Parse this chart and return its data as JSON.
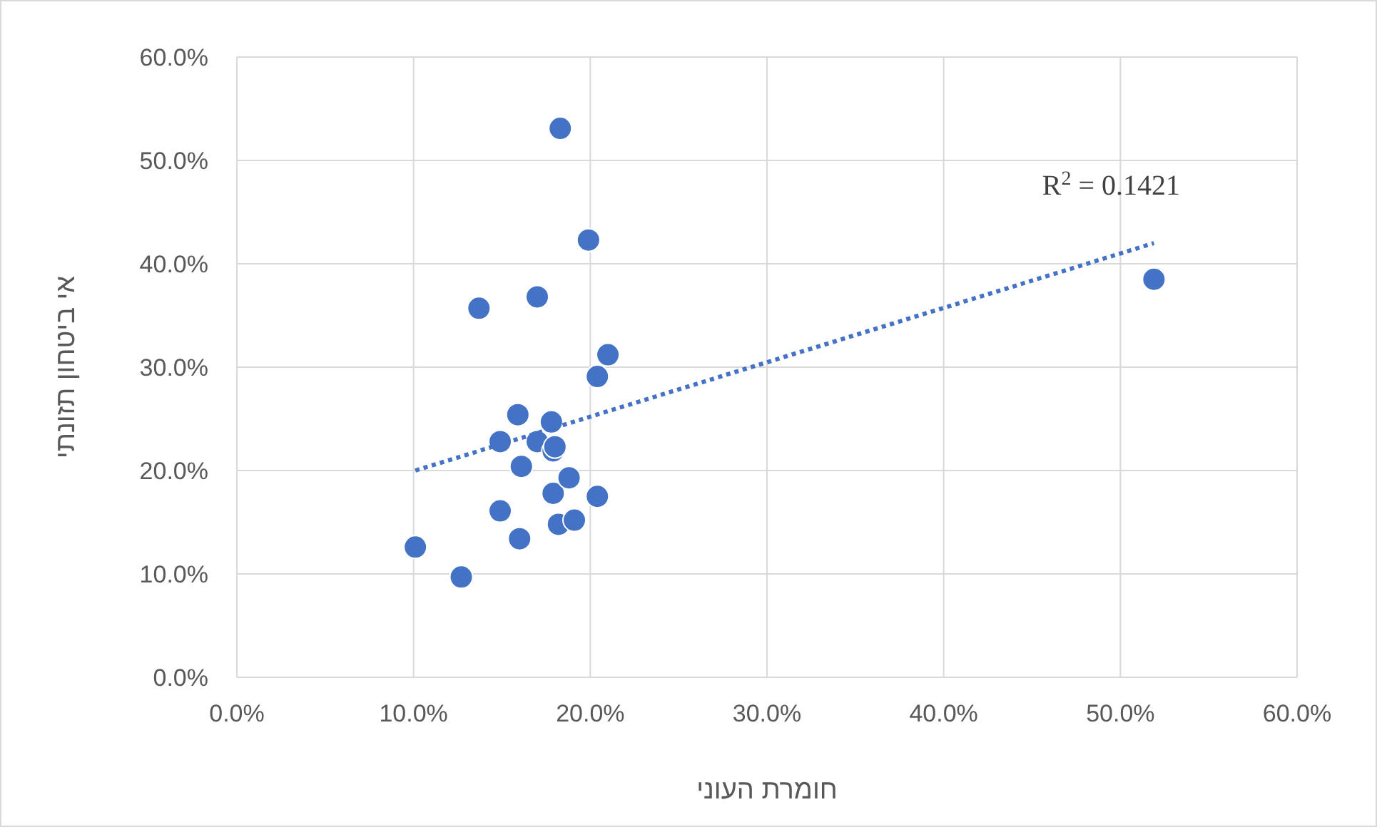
{
  "chart_data": {
    "type": "scatter",
    "xlabel": "חומרת העוני",
    "ylabel": "אי ביטחון תזונתי",
    "xlim": [
      0,
      60
    ],
    "ylim": [
      0,
      60
    ],
    "xticks": [
      {
        "value": 0,
        "label": "0.0%"
      },
      {
        "value": 10,
        "label": "10.0%"
      },
      {
        "value": 20,
        "label": "20.0%"
      },
      {
        "value": 30,
        "label": "30.0%"
      },
      {
        "value": 40,
        "label": "40.0%"
      },
      {
        "value": 50,
        "label": "50.0%"
      },
      {
        "value": 60,
        "label": "60.0%"
      }
    ],
    "yticks": [
      {
        "value": 0,
        "label": "0.0%"
      },
      {
        "value": 10,
        "label": "10.0%"
      },
      {
        "value": 20,
        "label": "20.0%"
      },
      {
        "value": 30,
        "label": "30.0%"
      },
      {
        "value": 40,
        "label": "40.0%"
      },
      {
        "value": 50,
        "label": "50.0%"
      },
      {
        "value": 60,
        "label": "60.0%"
      }
    ],
    "grid": true,
    "series": [
      {
        "marker": "circle",
        "color": "#4472c4",
        "x": [
          10.1,
          12.7,
          13.7,
          14.9,
          14.9,
          15.9,
          16.0,
          16.1,
          17.0,
          17.0,
          17.8,
          17.9,
          17.9,
          18.0,
          18.3,
          18.2,
          18.8,
          19.1,
          19.9,
          20.4,
          20.4,
          21.0,
          51.9
        ],
        "values": [
          12.6,
          9.7,
          35.7,
          22.8,
          16.1,
          25.4,
          13.4,
          20.4,
          36.8,
          22.8,
          24.7,
          17.8,
          21.9,
          22.3,
          53.1,
          14.8,
          19.3,
          15.2,
          42.3,
          29.1,
          17.5,
          31.2,
          38.5
        ]
      },
      {
        "type": "line",
        "color": "#4472c4",
        "line_style": "dotted",
        "x": [
          10.1,
          51.9
        ],
        "values": [
          20.0,
          42.0
        ]
      }
    ],
    "annotations": [
      "R$^{2}$ = 0.1421"
    ]
  }
}
